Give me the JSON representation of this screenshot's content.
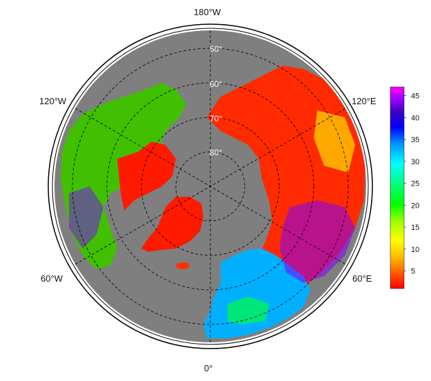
{
  "map": {
    "projection": "north-polar-stereographic",
    "longitude_labels": [
      "180°W",
      "120°W",
      "120°E",
      "60°W",
      "60°E",
      "0°"
    ],
    "latitude_labels": [
      "50°",
      "60°",
      "70°",
      "80°"
    ],
    "background_ocean_color": "#7f7f7f",
    "polar_ice_color": "#7f7f7f",
    "greenland_color": "#ff1a00",
    "frame": "double circle"
  },
  "colorbar": {
    "ticks": [
      "45",
      "40",
      "35",
      "30",
      "25",
      "20",
      "15",
      "10",
      "5"
    ],
    "tick_values": [
      45,
      40,
      35,
      30,
      25,
      20,
      15,
      10,
      5
    ],
    "min": 1,
    "max": 47,
    "colors": [
      "#ff0000",
      "#ff6000",
      "#ffc000",
      "#ffff00",
      "#a0ff00",
      "#00ff00",
      "#00ff80",
      "#00ffff",
      "#0090ff",
      "#0000ff",
      "#4000c0",
      "#a000ff",
      "#ff00ff"
    ]
  }
}
